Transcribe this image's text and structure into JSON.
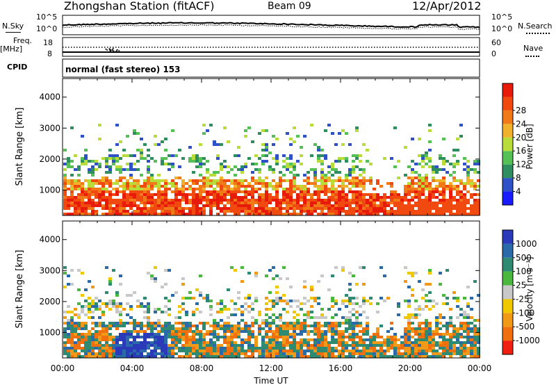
{
  "header": {
    "title": "Zhongshan Station (fitACF)",
    "beam": "Beam 09",
    "date": "12/Apr/2012"
  },
  "status_panels": {
    "nsky_label": "N.Sky",
    "nsearch_label": "N.Search",
    "noise_ticks": [
      "10^5",
      "10^0"
    ],
    "freq_label": "Freq.",
    "freq_unit": "[MHz]",
    "freq_ticks": [
      "18",
      "8"
    ],
    "nave_label": "Nave",
    "nave_ticks": [
      "60",
      "0"
    ],
    "cpid_label": "CPID",
    "cpid_value": "normal (fast stereo) 153"
  },
  "chart_data": [
    {
      "type": "heatmap",
      "quantity": "Power",
      "xlabel": "",
      "ylabel": "Slant Range [km]",
      "y_ticks": [
        "1000",
        "2000",
        "3000",
        "4000"
      ],
      "ylim": [
        180,
        4600
      ],
      "xlim_hours": [
        0,
        24
      ],
      "colorbar": {
        "label": "Power [dB]",
        "ticks": [
          "4",
          "8",
          "12",
          "16",
          "20",
          "24",
          "28"
        ],
        "range": [
          0,
          30
        ],
        "colors": [
          "#1a1aff",
          "#3050c8",
          "#2e8e60",
          "#55c055",
          "#b8dc3a",
          "#f0b22a",
          "#f07a18",
          "#f04a10",
          "#e81a0a"
        ]
      }
    },
    {
      "type": "heatmap",
      "quantity": "Velocity",
      "xlabel": "Time UT",
      "ylabel": "Slant Range [km]",
      "y_ticks": [
        "1000",
        "2000",
        "3000",
        "4000"
      ],
      "ylim": [
        180,
        4600
      ],
      "xlim_hours": [
        0,
        24
      ],
      "x_ticks": [
        "00:00",
        "04:00",
        "08:00",
        "12:00",
        "16:00",
        "20:00",
        "00:00"
      ],
      "colorbar": {
        "label": "Velocity [m s⁻¹]",
        "ticks": [
          "1000",
          "500",
          "100",
          "25",
          "-25",
          "-100",
          "-500",
          "-1000"
        ],
        "colors": [
          "#2a3ab8",
          "#2a6aa8",
          "#2e8a70",
          "#4ab83e",
          "#c8c8c8",
          "#f0c800",
          "#f09a18",
          "#f07010",
          "#f02010"
        ]
      }
    }
  ]
}
